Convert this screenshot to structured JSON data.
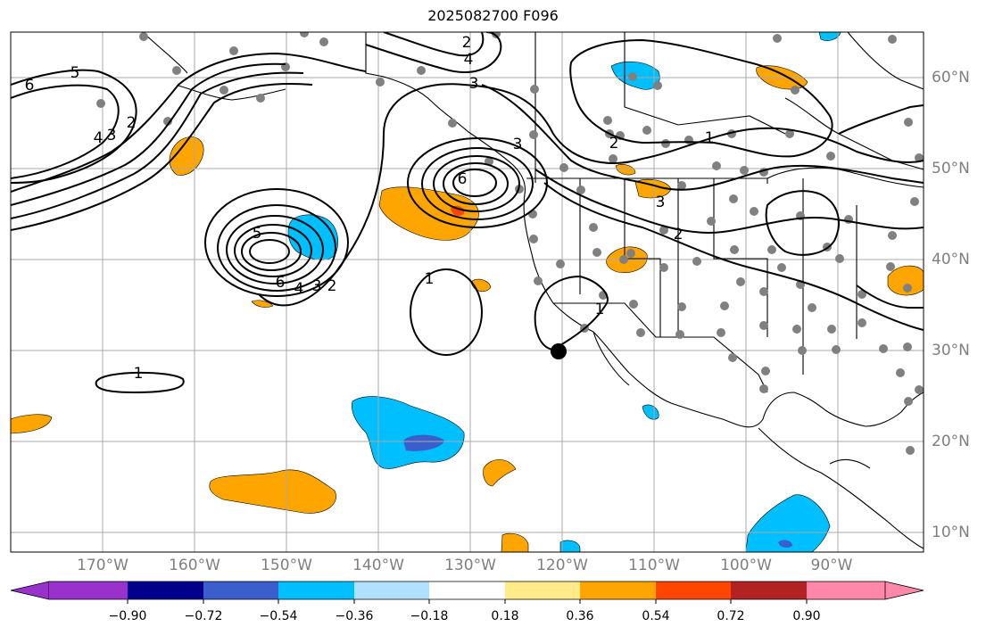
{
  "title": "2025082700 F096",
  "lon_labels": [
    "170°W",
    "160°W",
    "150°W",
    "140°W",
    "130°W",
    "120°W",
    "110°W",
    "100°W",
    "90°W"
  ],
  "lat_labels": [
    "60°N",
    "50°N",
    "40°N",
    "30°N",
    "20°N",
    "10°N"
  ],
  "contour_labels": [
    "6",
    "5",
    "4",
    "3",
    "2",
    "1",
    "6",
    "5",
    "4",
    "3",
    "2",
    "6",
    "3",
    "4",
    "3",
    "2",
    "1",
    "1",
    "2",
    "3",
    "2",
    "1"
  ],
  "colorbar": {
    "ticks": [
      "−0.90",
      "−0.72",
      "−0.54",
      "−0.36",
      "−0.18",
      "0.18",
      "0.36",
      "0.54",
      "0.72",
      "0.90"
    ],
    "colors": [
      "#9932cc",
      "#00008b",
      "#3a5fcd",
      "#00bfff",
      "#b0e2ff",
      "#ffffff",
      "#ffeb8a",
      "#ffa500",
      "#ff4500",
      "#b22222",
      "#ff88aa"
    ]
  },
  "colors": {
    "positive": "#ffa500",
    "positive_strong": "#ff4500",
    "negative": "#00bfff",
    "negative_strong": "#3a5fcd",
    "station": "#808080",
    "grid": "#a9a9a9"
  }
}
